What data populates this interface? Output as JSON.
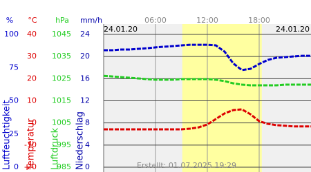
{
  "chart_data": {
    "type": "line",
    "date_left": "24.01.20",
    "date_right": "24.01.20",
    "footer": "Erstellt: 01.07.2025 19:29",
    "x": [
      0,
      1,
      2,
      3,
      4,
      5,
      6,
      7,
      8,
      9,
      10,
      11,
      12,
      13,
      14,
      15,
      16,
      17,
      18,
      19,
      20,
      21,
      22,
      23,
      24
    ],
    "xlim": [
      0,
      24
    ],
    "xticks": [
      {
        "value": 6,
        "label": "06:00"
      },
      {
        "value": 12,
        "label": "12:00"
      },
      {
        "value": 18,
        "label": "18:00"
      }
    ],
    "daylight": [
      9.1,
      18.3
    ],
    "grid": true,
    "axes": [
      {
        "unit": "%",
        "label": "Luftfeuchtigkeit",
        "color": "#0000cc",
        "ylim": [
          0,
          100
        ],
        "ticks": [
          0,
          25,
          50,
          75,
          100
        ]
      },
      {
        "unit": "°C",
        "label": "Temperatur",
        "color": "#dd0000",
        "ylim": [
          -20,
          40
        ],
        "ticks": [
          -20,
          -10,
          0,
          10,
          20,
          30,
          40
        ]
      },
      {
        "unit": "hPa",
        "label": "Luftdruck",
        "color": "#22cc22",
        "ylim": [
          985,
          1045
        ],
        "ticks": [
          985,
          995,
          1005,
          1015,
          1025,
          1035,
          1045
        ]
      },
      {
        "unit": "mm/h",
        "label": "Niederschlag",
        "color": "#0000aa",
        "ylim": [
          0,
          24
        ],
        "ticks": [
          0,
          4,
          8,
          12,
          16,
          20,
          24
        ]
      }
    ],
    "series": [
      {
        "axis": 0,
        "color": "#0000cc",
        "values": [
          88.1,
          88.1,
          88.6,
          88.6,
          89.1,
          89.6,
          90.2,
          90.7,
          91.2,
          91.7,
          92.2,
          92.2,
          92.2,
          91.7,
          87.0,
          78.2,
          73.1,
          74.1,
          77.7,
          80.8,
          82.4,
          82.9,
          83.4,
          83.9,
          83.9
        ]
      },
      {
        "axis": 2,
        "color": "#22cc22",
        "values": [
          1026.3,
          1026.0,
          1025.7,
          1025.4,
          1025.1,
          1024.8,
          1024.5,
          1024.5,
          1024.5,
          1024.8,
          1024.8,
          1024.8,
          1024.8,
          1024.5,
          1023.9,
          1022.9,
          1022.3,
          1022.0,
          1022.0,
          1022.0,
          1022.0,
          1022.3,
          1022.3,
          1022.3,
          1022.3
        ]
      },
      {
        "axis": 1,
        "color": "#dd0000",
        "values": [
          -2.9,
          -2.9,
          -2.9,
          -2.9,
          -2.9,
          -2.9,
          -2.9,
          -2.9,
          -2.9,
          -2.9,
          -2.6,
          -2.0,
          -0.7,
          1.8,
          4.3,
          5.8,
          6.1,
          3.9,
          0.8,
          -0.4,
          -1.0,
          -1.3,
          -1.6,
          -1.6,
          -1.6
        ]
      }
    ]
  }
}
